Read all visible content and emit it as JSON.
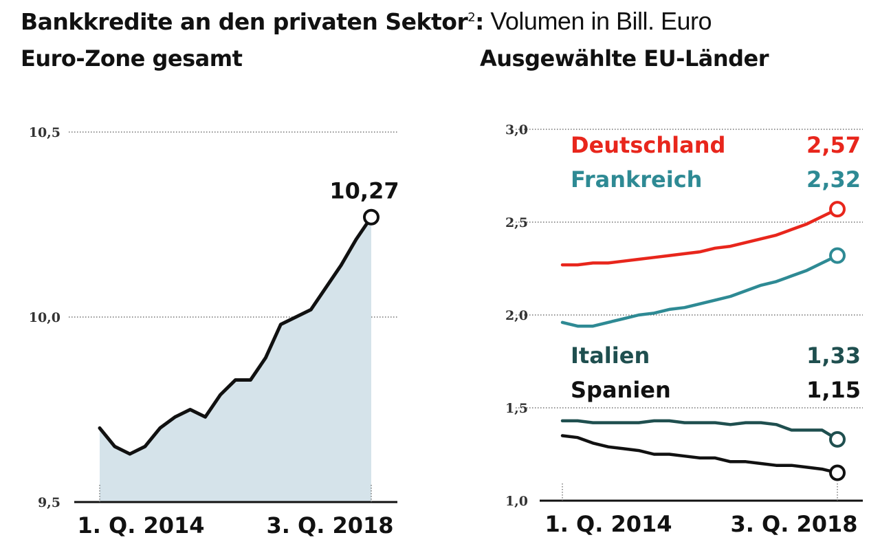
{
  "header": {
    "title_bold": "Bankkredite an den privaten Sektor",
    "title_sup": "2",
    "title_colon": ":",
    "title_normal": " Volumen in Bill. Euro"
  },
  "chart_data": [
    {
      "type": "area",
      "title": "Euro-Zone gesamt",
      "xlabel": "",
      "ylabel": "Volumen in Bill. Euro",
      "ylim": [
        9.5,
        10.5
      ],
      "y_ticks": [
        9.5,
        10.0,
        10.5
      ],
      "y_tick_labels": [
        "9,5",
        "10,0",
        "10,5"
      ],
      "x_tick_labels": [
        "1. Q. 2014",
        "3. Q. 2018"
      ],
      "grid": true,
      "x": [
        "Q1 2014",
        "Q2 2014",
        "Q3 2014",
        "Q4 2014",
        "Q1 2015",
        "Q2 2015",
        "Q3 2015",
        "Q4 2015",
        "Q1 2016",
        "Q2 2016",
        "Q3 2016",
        "Q4 2016",
        "Q1 2017",
        "Q2 2017",
        "Q3 2017",
        "Q4 2017",
        "Q1 2018",
        "Q2 2018",
        "Q3 2018"
      ],
      "series": [
        {
          "name": "Euro-Zone",
          "color": "#111111",
          "fill": "#d5e3ea",
          "values": [
            9.7,
            9.65,
            9.63,
            9.65,
            9.7,
            9.73,
            9.75,
            9.73,
            9.79,
            9.83,
            9.83,
            9.89,
            9.98,
            10.0,
            10.02,
            10.08,
            10.14,
            10.21,
            10.27
          ]
        }
      ],
      "annotation": {
        "label": "10,27",
        "value": 10.27
      }
    },
    {
      "type": "line",
      "title": "Ausgewählte EU-Länder",
      "xlabel": "",
      "ylabel": "Volumen in Bill. Euro",
      "ylim": [
        1.0,
        3.0
      ],
      "y_ticks": [
        1.0,
        1.5,
        2.0,
        2.5,
        3.0
      ],
      "y_tick_labels": [
        "1,0",
        "1,5",
        "2,0",
        "2,5",
        "3,0"
      ],
      "x_tick_labels": [
        "1. Q. 2014",
        "3. Q. 2018"
      ],
      "grid": true,
      "x": [
        "Q1 2014",
        "Q2 2014",
        "Q3 2014",
        "Q4 2014",
        "Q1 2015",
        "Q2 2015",
        "Q3 2015",
        "Q4 2015",
        "Q1 2016",
        "Q2 2016",
        "Q3 2016",
        "Q4 2016",
        "Q1 2017",
        "Q2 2017",
        "Q3 2017",
        "Q4 2017",
        "Q1 2018",
        "Q2 2018",
        "Q3 2018"
      ],
      "series": [
        {
          "name": "Deutschland",
          "label": "2,57",
          "color": "#e8261c",
          "values": [
            2.27,
            2.27,
            2.28,
            2.28,
            2.29,
            2.3,
            2.31,
            2.32,
            2.33,
            2.34,
            2.36,
            2.37,
            2.39,
            2.41,
            2.43,
            2.46,
            2.49,
            2.53,
            2.57
          ]
        },
        {
          "name": "Frankreich",
          "label": "2,32",
          "color": "#2e8a94",
          "values": [
            1.96,
            1.94,
            1.94,
            1.96,
            1.98,
            2.0,
            2.01,
            2.03,
            2.04,
            2.06,
            2.08,
            2.1,
            2.13,
            2.16,
            2.18,
            2.21,
            2.24,
            2.28,
            2.32
          ]
        },
        {
          "name": "Italien",
          "label": "1,33",
          "color": "#1f4f4f",
          "values": [
            1.43,
            1.43,
            1.42,
            1.42,
            1.42,
            1.42,
            1.43,
            1.43,
            1.42,
            1.42,
            1.42,
            1.41,
            1.42,
            1.42,
            1.41,
            1.38,
            1.38,
            1.38,
            1.33
          ]
        },
        {
          "name": "Spanien",
          "label": "1,15",
          "color": "#111111",
          "values": [
            1.35,
            1.34,
            1.31,
            1.29,
            1.28,
            1.27,
            1.25,
            1.25,
            1.24,
            1.23,
            1.23,
            1.21,
            1.21,
            1.2,
            1.19,
            1.19,
            1.18,
            1.17,
            1.15
          ]
        }
      ]
    }
  ]
}
